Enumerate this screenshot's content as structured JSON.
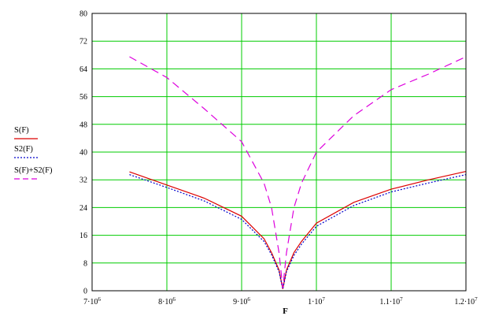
{
  "chart_data": {
    "type": "line",
    "title": "",
    "xlabel": "F",
    "ylabel": "",
    "xlim": [
      7000000,
      12000000
    ],
    "ylim": [
      0,
      80
    ],
    "grid": true,
    "legend_position": "left",
    "x_ticks": [
      {
        "value": 7000000,
        "mantissa": "7·10",
        "exp": "6"
      },
      {
        "value": 8000000,
        "mantissa": "8·10",
        "exp": "6"
      },
      {
        "value": 9000000,
        "mantissa": "9·10",
        "exp": "6"
      },
      {
        "value": 10000000,
        "mantissa": "1·10",
        "exp": "7"
      },
      {
        "value": 11000000,
        "mantissa": "1.1·10",
        "exp": "7"
      },
      {
        "value": 12000000,
        "mantissa": "1.2·10",
        "exp": "7"
      }
    ],
    "y_ticks": [
      0,
      8,
      16,
      24,
      32,
      40,
      48,
      56,
      64,
      72,
      80
    ],
    "colors": {
      "grid": "#00cc00",
      "frame": "#000000"
    },
    "series": [
      {
        "name": "S(F)",
        "color": "#dd0000",
        "dash": "solid",
        "points": [
          [
            7500000,
            34.3
          ],
          [
            8000000,
            30.5
          ],
          [
            8500000,
            26.7
          ],
          [
            9000000,
            21.5
          ],
          [
            9300000,
            15.0
          ],
          [
            9400000,
            11.0
          ],
          [
            9500000,
            6.0
          ],
          [
            9550000,
            0.5
          ],
          [
            9600000,
            6.0
          ],
          [
            9700000,
            11.0
          ],
          [
            9800000,
            14.2
          ],
          [
            10000000,
            19.5
          ],
          [
            10500000,
            25.5
          ],
          [
            11000000,
            29.3
          ],
          [
            11500000,
            32.0
          ],
          [
            12000000,
            34.4
          ]
        ]
      },
      {
        "name": "S2(F)",
        "color": "#0000cc",
        "dash": "dotted",
        "points": [
          [
            7500000,
            33.5
          ],
          [
            8000000,
            29.8
          ],
          [
            8500000,
            25.9
          ],
          [
            9000000,
            20.6
          ],
          [
            9300000,
            14.2
          ],
          [
            9400000,
            10.4
          ],
          [
            9500000,
            5.5
          ],
          [
            9550000,
            0.5
          ],
          [
            9600000,
            5.5
          ],
          [
            9700000,
            10.2
          ],
          [
            9800000,
            13.4
          ],
          [
            10000000,
            18.6
          ],
          [
            10500000,
            24.6
          ],
          [
            11000000,
            28.5
          ],
          [
            11500000,
            31.1
          ],
          [
            12000000,
            33.5
          ]
        ]
      },
      {
        "name": "S(F)+S2(F)",
        "color": "#dd00dd",
        "dash": "dashed",
        "points": [
          [
            7500000,
            67.5
          ],
          [
            8000000,
            61.5
          ],
          [
            8500000,
            52.5
          ],
          [
            9000000,
            43.0
          ],
          [
            9300000,
            31.0
          ],
          [
            9400000,
            24.0
          ],
          [
            9500000,
            11.0
          ],
          [
            9550000,
            0.8
          ],
          [
            9600000,
            11.0
          ],
          [
            9700000,
            24.0
          ],
          [
            9800000,
            31.0
          ],
          [
            10000000,
            40.0
          ],
          [
            10500000,
            50.5
          ],
          [
            11000000,
            58.0
          ],
          [
            11500000,
            62.5
          ],
          [
            12000000,
            67.5
          ]
        ]
      }
    ]
  }
}
